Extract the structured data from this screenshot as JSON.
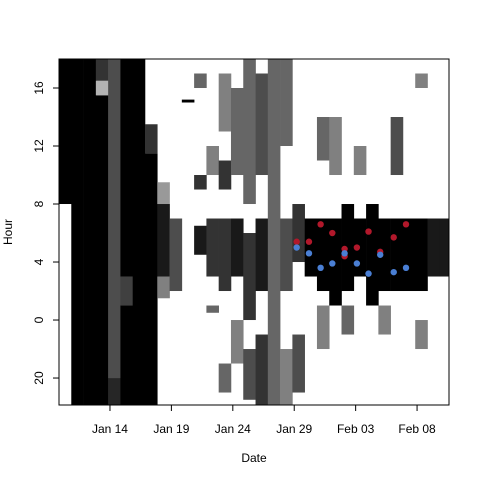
{
  "chart_data": {
    "type": "actogram",
    "xlabel": "Date",
    "ylabel": "Hour",
    "xlim": [
      9.85,
      41.6
    ],
    "ylim": [
      -5.86,
      18
    ],
    "xticks": [
      {
        "value": 14,
        "label": "Jan 14"
      },
      {
        "value": 19,
        "label": "Jan 19"
      },
      {
        "value": 24,
        "label": "Jan 24"
      },
      {
        "value": 29,
        "label": "Jan 29"
      },
      {
        "value": 34,
        "label": "Feb 03"
      },
      {
        "value": 39,
        "label": "Feb 08"
      }
    ],
    "yticks": [
      {
        "value": -4,
        "label": "20"
      },
      0,
      4,
      8,
      12,
      16
    ],
    "heatmap": [
      {
        "x": 9.85,
        "bands": [
          [
            8,
            18,
            1
          ]
        ]
      },
      {
        "x": 10.85,
        "bands": [
          [
            -5.86,
            18,
            1
          ]
        ]
      },
      {
        "x": 11.85,
        "bands": [
          [
            -5.86,
            18,
            1
          ]
        ]
      },
      {
        "x": 12.85,
        "bands": [
          [
            -5.86,
            15.5,
            1
          ],
          [
            15.5,
            16.5,
            0.3
          ],
          [
            16.5,
            18,
            0.8
          ]
        ]
      },
      {
        "x": 13.85,
        "bands": [
          [
            -5.86,
            -4,
            0.85
          ],
          [
            -4,
            18,
            0.7
          ]
        ]
      },
      {
        "x": 14.85,
        "bands": [
          [
            -5.86,
            1,
            1
          ],
          [
            1,
            3,
            0.75
          ],
          [
            3,
            18,
            1
          ]
        ]
      },
      {
        "x": 15.85,
        "bands": [
          [
            -5.86,
            18,
            1
          ]
        ]
      },
      {
        "x": 16.85,
        "bands": [
          [
            -5.86,
            11.5,
            1
          ],
          [
            11.5,
            13.5,
            0.8
          ]
        ]
      },
      {
        "x": 17.85,
        "bands": [
          [
            1.5,
            3,
            0.5
          ],
          [
            3,
            8,
            0.9
          ],
          [
            8,
            9.5,
            0.4
          ]
        ]
      },
      {
        "x": 18.85,
        "bands": [
          [
            2,
            7,
            0.7
          ]
        ]
      },
      {
        "x": 19.85,
        "bands": [
          [
            15,
            15.2,
            1
          ]
        ]
      },
      {
        "x": 20.85,
        "bands": [
          [
            4.5,
            6.5,
            0.9
          ],
          [
            9,
            10,
            0.8
          ],
          [
            16,
            17,
            0.6
          ]
        ]
      },
      {
        "x": 21.85,
        "bands": [
          [
            0.5,
            1,
            0.6
          ],
          [
            3,
            7,
            0.8
          ],
          [
            10,
            12,
            0.5
          ]
        ]
      },
      {
        "x": 22.85,
        "bands": [
          [
            -5,
            -3,
            0.6
          ],
          [
            2,
            7,
            0.8
          ],
          [
            9,
            11,
            0.8
          ],
          [
            13,
            17,
            0.5
          ]
        ]
      },
      {
        "x": 23.85,
        "bands": [
          [
            -3,
            0,
            0.5
          ],
          [
            3,
            7,
            0.9
          ],
          [
            10,
            16,
            0.6
          ]
        ]
      },
      {
        "x": 24.85,
        "bands": [
          [
            -5.5,
            -2,
            0.7
          ],
          [
            0,
            6,
            0.8
          ],
          [
            8,
            18,
            0.6
          ]
        ]
      },
      {
        "x": 25.85,
        "bands": [
          [
            -5.86,
            -1,
            0.8
          ],
          [
            2,
            7,
            0.9
          ],
          [
            10,
            17,
            0.7
          ]
        ]
      },
      {
        "x": 26.85,
        "bands": [
          [
            -5.86,
            18,
            0.6
          ]
        ]
      },
      {
        "x": 27.85,
        "bands": [
          [
            -5.86,
            -2,
            0.5
          ],
          [
            2,
            7,
            0.7
          ],
          [
            12,
            18,
            0.6
          ]
        ]
      },
      {
        "x": 28.85,
        "bands": [
          [
            -5,
            -1,
            0.7
          ],
          [
            4,
            8,
            0.8
          ]
        ]
      },
      {
        "x": 29.85,
        "bands": [
          [
            3,
            7,
            1
          ]
        ]
      },
      {
        "x": 30.85,
        "bands": [
          [
            -2,
            1,
            0.5
          ],
          [
            2,
            7,
            1
          ],
          [
            11,
            14,
            0.6
          ]
        ]
      },
      {
        "x": 31.85,
        "bands": [
          [
            1,
            7,
            1
          ],
          [
            10,
            14,
            0.5
          ]
        ]
      },
      {
        "x": 32.85,
        "bands": [
          [
            -1,
            1,
            0.6
          ],
          [
            2,
            8,
            1
          ]
        ]
      },
      {
        "x": 33.85,
        "bands": [
          [
            3,
            7,
            1
          ],
          [
            10,
            12,
            0.5
          ]
        ]
      },
      {
        "x": 34.85,
        "bands": [
          [
            1,
            8,
            1
          ]
        ]
      },
      {
        "x": 35.85,
        "bands": [
          [
            -1,
            1,
            0.5
          ],
          [
            2,
            7,
            1
          ]
        ]
      },
      {
        "x": 36.85,
        "bands": [
          [
            2,
            7,
            1
          ],
          [
            10,
            14,
            0.7
          ]
        ]
      },
      {
        "x": 37.85,
        "bands": [
          [
            2,
            7,
            1
          ]
        ]
      },
      {
        "x": 38.85,
        "bands": [
          [
            -2,
            0,
            0.5
          ],
          [
            2,
            7,
            1
          ],
          [
            16,
            17,
            0.5
          ]
        ]
      },
      {
        "x": 39.85,
        "bands": [
          [
            3,
            7,
            0.9
          ]
        ]
      },
      {
        "x": 40.85,
        "bands": [
          [
            3,
            7,
            0.9
          ]
        ]
      }
    ],
    "series": [
      {
        "color": "#b2182b",
        "x": [
          29.2,
          30.2,
          31.15,
          32.1,
          33.1,
          33.1,
          34.1,
          35.05,
          36.0,
          37.1,
          38.1
        ],
        "values": [
          5.4,
          5.4,
          6.6,
          6.0,
          4.9,
          4.4,
          5.0,
          6.1,
          4.7,
          5.7,
          6.6
        ]
      },
      {
        "color": "#4a7fd4",
        "x": [
          29.2,
          30.2,
          31.15,
          32.1,
          33.1,
          34.1,
          35.05,
          36.0,
          37.1,
          38.1
        ],
        "values": [
          5.0,
          4.6,
          3.6,
          3.9,
          4.6,
          3.9,
          3.2,
          4.5,
          3.3,
          3.6
        ]
      }
    ]
  }
}
